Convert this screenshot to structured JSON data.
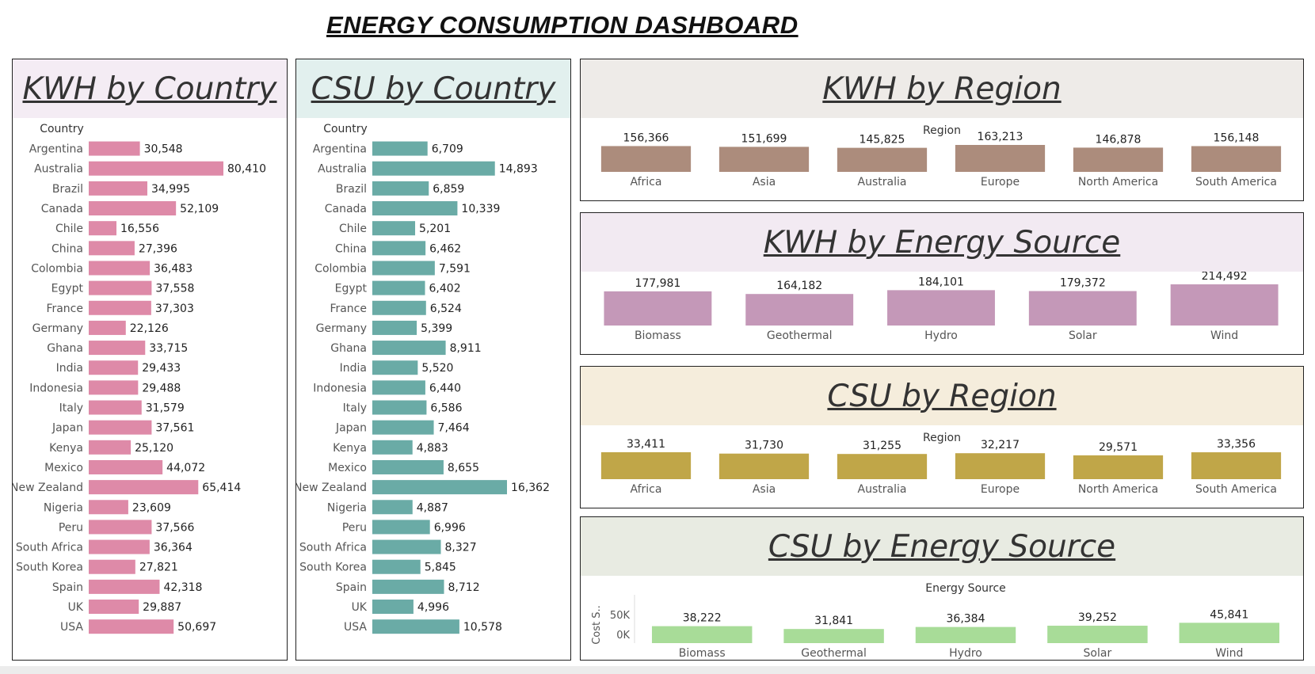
{
  "dashboard": {
    "title": "ENERGY CONSUMPTION DASHBOARD"
  },
  "chart_data": [
    {
      "id": "kwh_country",
      "type": "bar",
      "orientation": "horizontal",
      "title": "KWH by Country",
      "axis_label": "Country",
      "color": "#de8aa8",
      "header_bg": "#f4ecf4",
      "categories": [
        "Argentina",
        "Australia",
        "Brazil",
        "Canada",
        "Chile",
        "China",
        "Colombia",
        "Egypt",
        "France",
        "Germany",
        "Ghana",
        "India",
        "Indonesia",
        "Italy",
        "Japan",
        "Kenya",
        "Mexico",
        "New Zealand",
        "Nigeria",
        "Peru",
        "South Africa",
        "South Korea",
        "Spain",
        "UK",
        "USA"
      ],
      "values": [
        30548,
        80410,
        34995,
        52109,
        16556,
        27396,
        36483,
        37558,
        37303,
        22126,
        33715,
        29433,
        29488,
        31579,
        37561,
        25120,
        44072,
        65414,
        23609,
        37566,
        36364,
        27821,
        42318,
        29887,
        50697
      ],
      "labels": [
        "30,548",
        "80,410",
        "34,995",
        "52,109",
        "16,556",
        "27,396",
        "36,483",
        "37,558",
        "37,303",
        "22,126",
        "33,715",
        "29,433",
        "29,488",
        "31,579",
        "37,561",
        "25,120",
        "44,072",
        "65,414",
        "23,609",
        "37,566",
        "36,364",
        "27,821",
        "42,318",
        "29,887",
        "50,697"
      ]
    },
    {
      "id": "csu_country",
      "type": "bar",
      "orientation": "horizontal",
      "title": "CSU by Country",
      "axis_label": "Country",
      "color": "#6aaba6",
      "header_bg": "#e2f0ee",
      "categories": [
        "Argentina",
        "Australia",
        "Brazil",
        "Canada",
        "Chile",
        "China",
        "Colombia",
        "Egypt",
        "France",
        "Germany",
        "Ghana",
        "India",
        "Indonesia",
        "Italy",
        "Japan",
        "Kenya",
        "Mexico",
        "New Zealand",
        "Nigeria",
        "Peru",
        "South Africa",
        "South Korea",
        "Spain",
        "UK",
        "USA"
      ],
      "values": [
        6709,
        14893,
        6859,
        10339,
        5201,
        6462,
        7591,
        6402,
        6524,
        5399,
        8911,
        5520,
        6440,
        6586,
        7464,
        4883,
        8655,
        16362,
        4887,
        6996,
        8327,
        5845,
        8712,
        4996,
        10578
      ],
      "labels": [
        "6,709",
        "14,893",
        "6,859",
        "10,339",
        "5,201",
        "6,462",
        "7,591",
        "6,402",
        "6,524",
        "5,399",
        "8,911",
        "5,520",
        "6,440",
        "6,586",
        "7,464",
        "4,883",
        "8,655",
        "16,362",
        "4,887",
        "6,996",
        "8,327",
        "5,845",
        "8,712",
        "4,996",
        "10,578"
      ]
    },
    {
      "id": "kwh_region",
      "type": "bar",
      "title": "KWH by Region",
      "axis_label": "Region",
      "color": "#ac8c7c",
      "header_bg": "#eeebe8",
      "categories": [
        "Africa",
        "Asia",
        "Australia",
        "Europe",
        "North America",
        "South America"
      ],
      "values": [
        156366,
        151699,
        145825,
        163213,
        146878,
        156148
      ],
      "labels": [
        "156,366",
        "151,699",
        "145,825",
        "163,213",
        "146,878",
        "156,148"
      ]
    },
    {
      "id": "kwh_source",
      "type": "bar",
      "title": "KWH by Energy Source",
      "axis_label": "",
      "color": "#c498b8",
      "header_bg": "#f2eaf2",
      "categories": [
        "Biomass",
        "Geothermal",
        "Hydro",
        "Solar",
        "Wind"
      ],
      "values": [
        177981,
        164182,
        184101,
        179372,
        214492
      ],
      "labels": [
        "177,981",
        "164,182",
        "184,101",
        "179,372",
        "214,492"
      ]
    },
    {
      "id": "csu_region",
      "type": "bar",
      "title": "CSU by Region",
      "axis_label": "Region",
      "color": "#c0a648",
      "header_bg": "#f5eddc",
      "categories": [
        "Africa",
        "Asia",
        "Australia",
        "Europe",
        "North America",
        "South America"
      ],
      "values": [
        33411,
        31730,
        31255,
        32217,
        29571,
        33356
      ],
      "labels": [
        "33,411",
        "31,730",
        "31,255",
        "32,217",
        "29,571",
        "33,356"
      ]
    },
    {
      "id": "csu_source",
      "type": "bar",
      "title": "CSU by Energy Source",
      "axis_label": "Energy Source",
      "ylabel": "Cost S..",
      "yticks": [
        "50K",
        "0K"
      ],
      "color": "#a8dc98",
      "header_bg": "#e8ebe2",
      "categories": [
        "Biomass",
        "Geothermal",
        "Hydro",
        "Solar",
        "Wind"
      ],
      "values": [
        38222,
        31841,
        36384,
        39252,
        45841
      ],
      "labels": [
        "38,222",
        "31,841",
        "36,384",
        "39,252",
        "45,841"
      ]
    }
  ]
}
